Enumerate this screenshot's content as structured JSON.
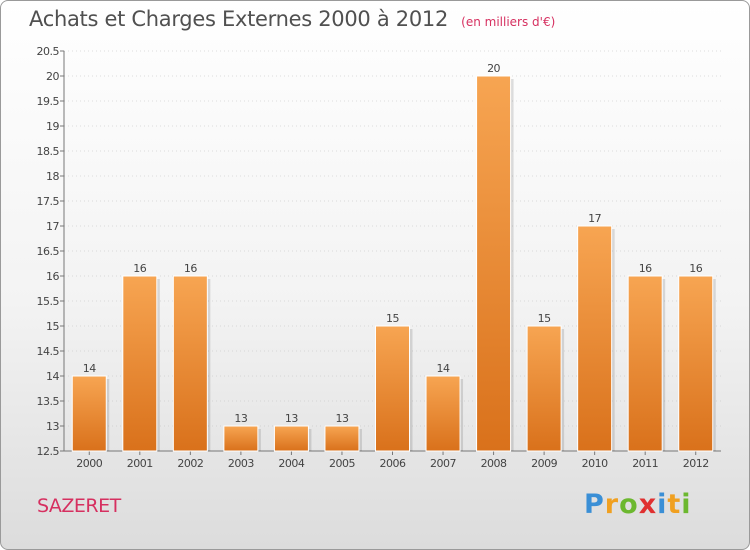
{
  "header": {
    "title": "Achats et Charges Externes 2000 à 2012",
    "unit": "(en milliers d'€)"
  },
  "place": "SAZERET",
  "logo": {
    "letters": [
      "P",
      "r",
      "o",
      "x",
      "i",
      "t",
      "i"
    ],
    "colors": [
      "#3a8fd6",
      "#f0a020",
      "#6cb82f",
      "#e03030",
      "#3a8fd6",
      "#f0a020",
      "#6cb82f"
    ]
  },
  "colors": {
    "bar_light": "#f7a552",
    "bar_dark": "#d9711b",
    "axis": "#777777",
    "grid": "#bdbdbd"
  },
  "chart_data": {
    "type": "bar",
    "title": "Achats et Charges Externes 2000 à 2012",
    "subtitle": "(en milliers d'€)",
    "categories": [
      "2000",
      "2001",
      "2002",
      "2003",
      "2004",
      "2005",
      "2006",
      "2007",
      "2008",
      "2009",
      "2010",
      "2011",
      "2012"
    ],
    "values": [
      14,
      16,
      16,
      13,
      13,
      13,
      15,
      14,
      20,
      15,
      17,
      16,
      16
    ],
    "ylim": [
      12.5,
      20.5
    ],
    "yticks": [
      "12.5",
      "13",
      "13.5",
      "14",
      "14.5",
      "15",
      "15.5",
      "16",
      "16.5",
      "17",
      "17.5",
      "18",
      "18.5",
      "19",
      "19.5",
      "20",
      "20.5"
    ],
    "grid": true,
    "legend": "none"
  }
}
